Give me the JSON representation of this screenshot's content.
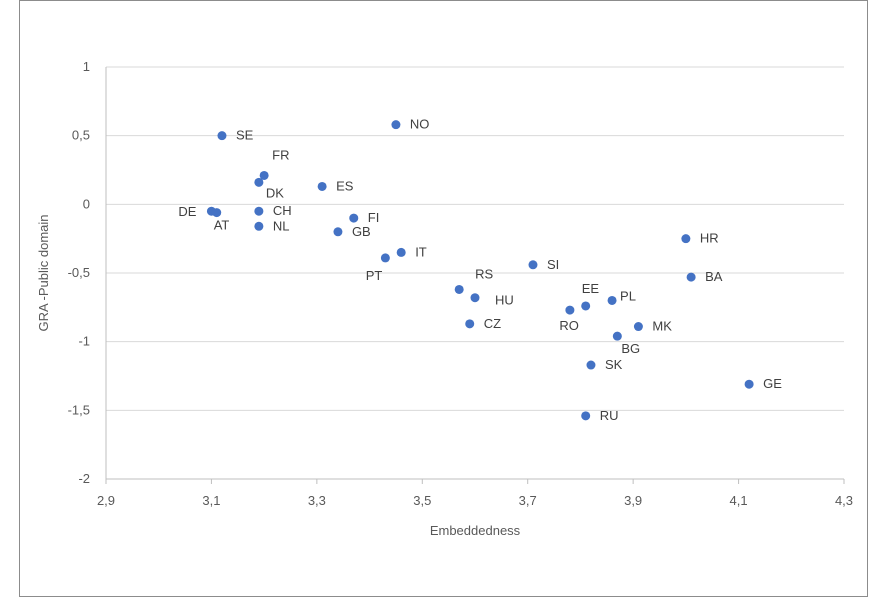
{
  "chart_data": {
    "type": "scatter",
    "title": "",
    "xlabel": "Embeddedness",
    "ylabel": "GRA -Public domain",
    "xlim": [
      2.9,
      4.3
    ],
    "ylim": [
      -2,
      1
    ],
    "x_ticks": [
      "2,9",
      "3,1",
      "3,3",
      "3,5",
      "3,7",
      "3,9",
      "4,1",
      "4,3"
    ],
    "y_ticks": [
      "1",
      "0,5",
      "0",
      "-0,5",
      "-1",
      "-1,5",
      "-2"
    ],
    "grid": "horizontal",
    "legend": "none",
    "marker_color": "#4472c4",
    "points": [
      {
        "label": "SE",
        "x": 3.12,
        "y": 0.5
      },
      {
        "label": "NO",
        "x": 3.45,
        "y": 0.58
      },
      {
        "label": "FR",
        "x": 3.2,
        "y": 0.21
      },
      {
        "label": "DK",
        "x": 3.19,
        "y": 0.16
      },
      {
        "label": "ES",
        "x": 3.31,
        "y": 0.13
      },
      {
        "label": "DE",
        "x": 3.1,
        "y": -0.05
      },
      {
        "label": "AT",
        "x": 3.11,
        "y": -0.06
      },
      {
        "label": "CH",
        "x": 3.19,
        "y": -0.05
      },
      {
        "label": "NL",
        "x": 3.19,
        "y": -0.16
      },
      {
        "label": "FI",
        "x": 3.37,
        "y": -0.1
      },
      {
        "label": "GB",
        "x": 3.34,
        "y": -0.2
      },
      {
        "label": "IT",
        "x": 3.46,
        "y": -0.35
      },
      {
        "label": "PT",
        "x": 3.43,
        "y": -0.39
      },
      {
        "label": "RS",
        "x": 3.57,
        "y": -0.62
      },
      {
        "label": "HU",
        "x": 3.6,
        "y": -0.68
      },
      {
        "label": "CZ",
        "x": 3.59,
        "y": -0.87
      },
      {
        "label": "SI",
        "x": 3.71,
        "y": -0.44
      },
      {
        "label": "EE",
        "x": 3.81,
        "y": -0.74
      },
      {
        "label": "RO",
        "x": 3.78,
        "y": -0.77
      },
      {
        "label": "PL",
        "x": 3.86,
        "y": -0.7
      },
      {
        "label": "MK",
        "x": 3.91,
        "y": -0.89
      },
      {
        "label": "BG",
        "x": 3.87,
        "y": -0.96
      },
      {
        "label": "SK",
        "x": 3.82,
        "y": -1.17
      },
      {
        "label": "RU",
        "x": 3.81,
        "y": -1.54
      },
      {
        "label": "HR",
        "x": 4.0,
        "y": -0.25
      },
      {
        "label": "BA",
        "x": 4.01,
        "y": -0.53
      },
      {
        "label": "GE",
        "x": 4.12,
        "y": -1.31
      }
    ]
  }
}
